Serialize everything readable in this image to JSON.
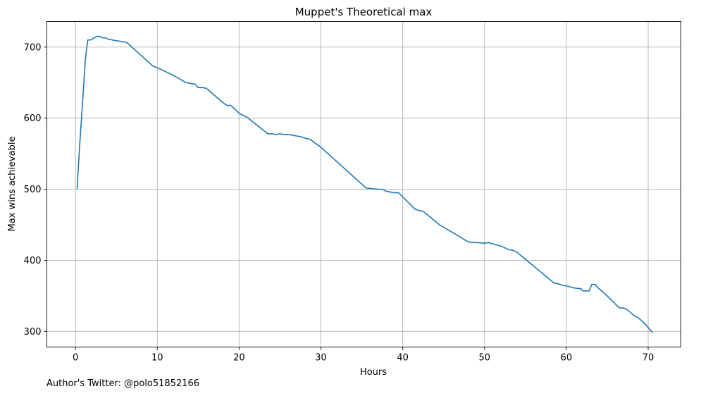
{
  "chart_data": {
    "type": "line",
    "title": "Muppet's Theoretical max",
    "xlabel": "Hours",
    "ylabel": "Max wins achievable",
    "xlim": [
      -3.5,
      74
    ],
    "ylim": [
      278,
      736
    ],
    "xticks": [
      0,
      10,
      20,
      30,
      40,
      50,
      60,
      70
    ],
    "yticks": [
      300,
      400,
      500,
      600,
      700
    ],
    "grid": true,
    "line_color": "#1f77b4",
    "series": [
      {
        "name": "",
        "points": [
          [
            0.2,
            501
          ],
          [
            0.5,
            560
          ],
          [
            0.8,
            610
          ],
          [
            1.2,
            682
          ],
          [
            1.5,
            710
          ],
          [
            1.9,
            710
          ],
          [
            2.3,
            713
          ],
          [
            2.6,
            715
          ],
          [
            3.0,
            715
          ],
          [
            3.3,
            713
          ],
          [
            3.7,
            713
          ],
          [
            4.0,
            711
          ],
          [
            5.0,
            709
          ],
          [
            6.2,
            707
          ],
          [
            6.5,
            704
          ],
          [
            9.5,
            673
          ],
          [
            10.0,
            671
          ],
          [
            12.0,
            660
          ],
          [
            13.5,
            650
          ],
          [
            14.0,
            649
          ],
          [
            14.6,
            648
          ],
          [
            15.0,
            643
          ],
          [
            15.5,
            643
          ],
          [
            16.0,
            642
          ],
          [
            18.0,
            622
          ],
          [
            18.5,
            618
          ],
          [
            19.0,
            618
          ],
          [
            20.0,
            607
          ],
          [
            21.0,
            601
          ],
          [
            23.5,
            578
          ],
          [
            24.0,
            578
          ],
          [
            24.5,
            577
          ],
          [
            25.0,
            578
          ],
          [
            25.5,
            577
          ],
          [
            26.0,
            577
          ],
          [
            27.0,
            575
          ],
          [
            27.5,
            574
          ],
          [
            28.0,
            572
          ],
          [
            28.7,
            570
          ],
          [
            30.0,
            559
          ],
          [
            35.5,
            502
          ],
          [
            36.0,
            501
          ],
          [
            37.0,
            500
          ],
          [
            37.5,
            500
          ],
          [
            38.0,
            497
          ],
          [
            38.5,
            496
          ],
          [
            39.0,
            495
          ],
          [
            39.5,
            495
          ],
          [
            41.5,
            472
          ],
          [
            42.0,
            470
          ],
          [
            42.5,
            469
          ],
          [
            44.5,
            450
          ],
          [
            48.0,
            426
          ],
          [
            48.5,
            425
          ],
          [
            49.0,
            425
          ],
          [
            50.0,
            424
          ],
          [
            50.5,
            425
          ],
          [
            51.0,
            423
          ],
          [
            52.0,
            420
          ],
          [
            53.0,
            415
          ],
          [
            53.5,
            414
          ],
          [
            54.0,
            411
          ],
          [
            58.5,
            368
          ],
          [
            59.0,
            367
          ],
          [
            59.5,
            365
          ],
          [
            60.0,
            364
          ],
          [
            61.0,
            361
          ],
          [
            61.8,
            360
          ],
          [
            62.0,
            357
          ],
          [
            62.8,
            357
          ],
          [
            63.1,
            366
          ],
          [
            63.5,
            366
          ],
          [
            64.0,
            360
          ],
          [
            64.8,
            352
          ],
          [
            66.2,
            336
          ],
          [
            66.5,
            333
          ],
          [
            67.0,
            333
          ],
          [
            67.5,
            330
          ],
          [
            68.3,
            322
          ],
          [
            68.7,
            320
          ],
          [
            69.5,
            312
          ],
          [
            70.5,
            299
          ]
        ]
      }
    ]
  },
  "footnote": "Author's Twitter: @polo51852166"
}
